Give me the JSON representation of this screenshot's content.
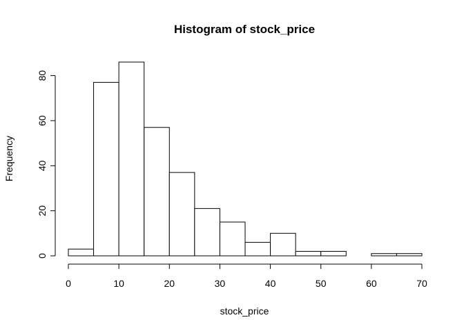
{
  "chart_data": {
    "type": "bar",
    "title": "Histogram of stock_price",
    "xlabel": "stock_price",
    "ylabel": "Frequency",
    "bins": [
      {
        "start": 0,
        "end": 5,
        "count": 3
      },
      {
        "start": 5,
        "end": 10,
        "count": 77
      },
      {
        "start": 10,
        "end": 15,
        "count": 86
      },
      {
        "start": 15,
        "end": 20,
        "count": 57
      },
      {
        "start": 20,
        "end": 25,
        "count": 37
      },
      {
        "start": 25,
        "end": 30,
        "count": 21
      },
      {
        "start": 30,
        "end": 35,
        "count": 15
      },
      {
        "start": 35,
        "end": 40,
        "count": 6
      },
      {
        "start": 40,
        "end": 45,
        "count": 10
      },
      {
        "start": 45,
        "end": 50,
        "count": 2
      },
      {
        "start": 50,
        "end": 55,
        "count": 2
      },
      {
        "start": 55,
        "end": 60,
        "count": 0
      },
      {
        "start": 60,
        "end": 65,
        "count": 1
      },
      {
        "start": 65,
        "end": 70,
        "count": 1
      }
    ],
    "xlim": [
      0,
      70
    ],
    "ylim": [
      0,
      86
    ],
    "x_ticks": [
      0,
      10,
      20,
      30,
      40,
      50,
      60,
      70
    ],
    "y_ticks": [
      0,
      20,
      40,
      60,
      80
    ],
    "grid": false
  }
}
